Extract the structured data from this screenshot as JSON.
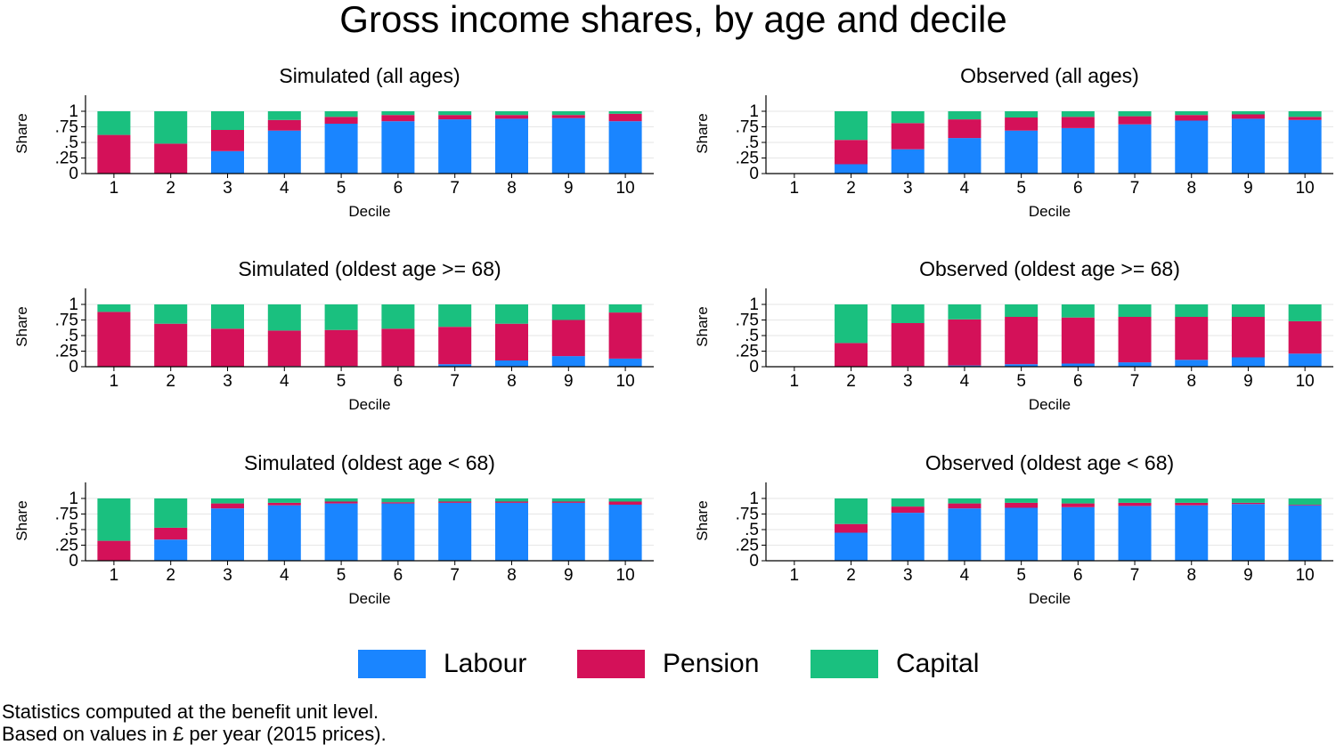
{
  "title": "Gross income shares, by age and decile",
  "colors": {
    "labour": "#1a85ff",
    "pension": "#d41159",
    "capital": "#1ac07f",
    "grid": "#e6e6e6",
    "axis": "#000000"
  },
  "legend": {
    "items": [
      {
        "key": "labour",
        "label": "Labour"
      },
      {
        "key": "pension",
        "label": "Pension"
      },
      {
        "key": "capital",
        "label": "Capital"
      }
    ]
  },
  "notes": {
    "line1": "Statistics computed at the benefit unit level.",
    "line2": "Based on values in £ per year (2015 prices)."
  },
  "chart_data": [
    {
      "type": "bar",
      "stacked": true,
      "title": "Simulated (all ages)",
      "xlabel": "Decile",
      "ylabel": "Share",
      "categories": [
        "1",
        "2",
        "3",
        "4",
        "5",
        "6",
        "7",
        "8",
        "9",
        "10"
      ],
      "yticks": [
        "0",
        ".25",
        ".5",
        ".75",
        "1"
      ],
      "ylim": [
        0,
        1.25
      ],
      "series": [
        {
          "name": "Labour",
          "values": [
            0,
            0,
            0.36,
            0.69,
            0.8,
            0.84,
            0.87,
            0.88,
            0.89,
            0.84
          ]
        },
        {
          "name": "Pension",
          "values": [
            0.62,
            0.48,
            0.34,
            0.17,
            0.11,
            0.1,
            0.07,
            0.06,
            0.05,
            0.12
          ]
        },
        {
          "name": "Capital",
          "values": [
            0.38,
            0.52,
            0.3,
            0.14,
            0.09,
            0.06,
            0.06,
            0.06,
            0.06,
            0.04
          ]
        }
      ]
    },
    {
      "type": "bar",
      "stacked": true,
      "title": "Observed (all ages)",
      "xlabel": "Decile",
      "ylabel": "Share",
      "categories": [
        "1",
        "2",
        "3",
        "4",
        "5",
        "6",
        "7",
        "8",
        "9",
        "10"
      ],
      "yticks": [
        "0",
        ".25",
        ".5",
        ".75",
        "1"
      ],
      "ylim": [
        0,
        1.25
      ],
      "series": [
        {
          "name": "Labour",
          "values": [
            0,
            0.15,
            0.39,
            0.57,
            0.69,
            0.73,
            0.79,
            0.85,
            0.88,
            0.86
          ]
        },
        {
          "name": "Pension",
          "values": [
            0,
            0.39,
            0.42,
            0.3,
            0.21,
            0.18,
            0.13,
            0.09,
            0.07,
            0.05
          ]
        },
        {
          "name": "Capital",
          "values": [
            0,
            0.46,
            0.19,
            0.13,
            0.1,
            0.09,
            0.08,
            0.06,
            0.05,
            0.09
          ]
        }
      ]
    },
    {
      "type": "bar",
      "stacked": true,
      "title": "Simulated (oldest age >= 68)",
      "xlabel": "Decile",
      "ylabel": "Share",
      "categories": [
        "1",
        "2",
        "3",
        "4",
        "5",
        "6",
        "7",
        "8",
        "9",
        "10"
      ],
      "yticks": [
        "0",
        ".25",
        ".5",
        ".75",
        "1"
      ],
      "ylim": [
        0,
        1.25
      ],
      "series": [
        {
          "name": "Labour",
          "values": [
            0,
            0,
            0,
            0.01,
            0.01,
            0.01,
            0.04,
            0.1,
            0.17,
            0.13
          ]
        },
        {
          "name": "Pension",
          "values": [
            0.88,
            0.69,
            0.61,
            0.57,
            0.58,
            0.6,
            0.6,
            0.59,
            0.58,
            0.74
          ]
        },
        {
          "name": "Capital",
          "values": [
            0.12,
            0.31,
            0.39,
            0.42,
            0.41,
            0.39,
            0.36,
            0.31,
            0.25,
            0.13
          ]
        }
      ]
    },
    {
      "type": "bar",
      "stacked": true,
      "title": "Observed (oldest age >= 68)",
      "xlabel": "Decile",
      "ylabel": "Share",
      "categories": [
        "1",
        "2",
        "3",
        "4",
        "5",
        "6",
        "7",
        "8",
        "9",
        "10"
      ],
      "yticks": [
        "0",
        ".25",
        ".5",
        ".75",
        "1"
      ],
      "ylim": [
        0,
        1.25
      ],
      "series": [
        {
          "name": "Labour",
          "values": [
            0,
            0,
            0.01,
            0.02,
            0.04,
            0.05,
            0.07,
            0.11,
            0.15,
            0.21
          ]
        },
        {
          "name": "Pension",
          "values": [
            0,
            0.38,
            0.69,
            0.74,
            0.76,
            0.74,
            0.73,
            0.69,
            0.65,
            0.52
          ]
        },
        {
          "name": "Capital",
          "values": [
            0,
            0.62,
            0.3,
            0.24,
            0.2,
            0.21,
            0.2,
            0.2,
            0.2,
            0.27
          ]
        }
      ]
    },
    {
      "type": "bar",
      "stacked": true,
      "title": "Simulated (oldest age < 68)",
      "xlabel": "Decile",
      "ylabel": "Share",
      "categories": [
        "1",
        "2",
        "3",
        "4",
        "5",
        "6",
        "7",
        "8",
        "9",
        "10"
      ],
      "yticks": [
        "0",
        ".25",
        ".5",
        ".75",
        "1"
      ],
      "ylim": [
        0,
        1.25
      ],
      "series": [
        {
          "name": "Labour",
          "values": [
            0,
            0.34,
            0.84,
            0.89,
            0.92,
            0.92,
            0.93,
            0.93,
            0.93,
            0.9
          ]
        },
        {
          "name": "Pension",
          "values": [
            0.32,
            0.19,
            0.08,
            0.04,
            0.03,
            0.02,
            0.02,
            0.02,
            0.02,
            0.05
          ]
        },
        {
          "name": "Capital",
          "values": [
            0.68,
            0.47,
            0.08,
            0.07,
            0.05,
            0.06,
            0.05,
            0.05,
            0.05,
            0.05
          ]
        }
      ]
    },
    {
      "type": "bar",
      "stacked": true,
      "title": "Observed (oldest age < 68)",
      "xlabel": "Decile",
      "ylabel": "Share",
      "categories": [
        "1",
        "2",
        "3",
        "4",
        "5",
        "6",
        "7",
        "8",
        "9",
        "10"
      ],
      "yticks": [
        "0",
        ".25",
        ".5",
        ".75",
        "1"
      ],
      "ylim": [
        0,
        1.25
      ],
      "series": [
        {
          "name": "Labour",
          "values": [
            0,
            0.45,
            0.77,
            0.84,
            0.85,
            0.86,
            0.88,
            0.89,
            0.91,
            0.89
          ]
        },
        {
          "name": "Pension",
          "values": [
            0,
            0.14,
            0.1,
            0.08,
            0.08,
            0.06,
            0.05,
            0.04,
            0.02,
            0.01
          ]
        },
        {
          "name": "Capital",
          "values": [
            0,
            0.41,
            0.13,
            0.08,
            0.07,
            0.08,
            0.07,
            0.07,
            0.07,
            0.1
          ]
        }
      ]
    }
  ]
}
